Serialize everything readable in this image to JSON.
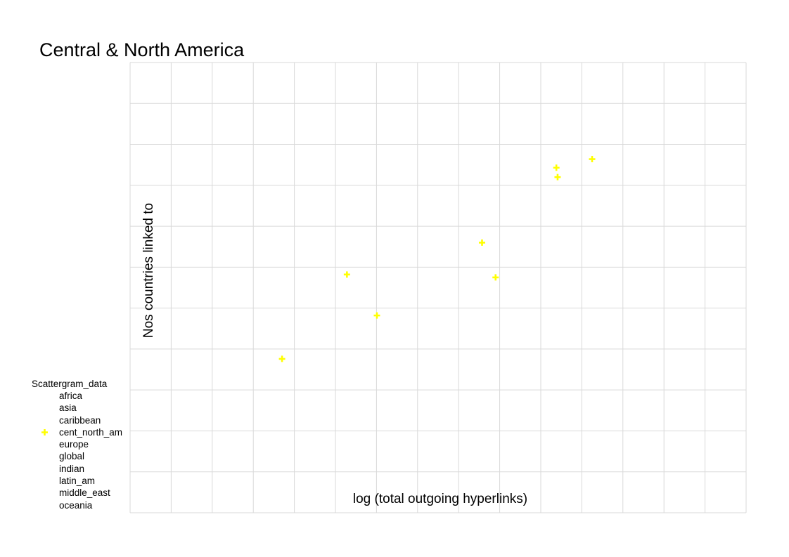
{
  "chart_data": {
    "type": "scatter",
    "title": "Central & North America",
    "xlabel": "log (total outgoing hyperlinks)",
    "ylabel": "Nos countries linked to",
    "grid": true,
    "x_divisions": 15,
    "y_divisions": 11,
    "marker": "plus",
    "legend": {
      "title": "Scattergram_data",
      "placement": "left",
      "entries": [
        {
          "label": "africa",
          "marker": false
        },
        {
          "label": "asia",
          "marker": false
        },
        {
          "label": "caribbean",
          "marker": false
        },
        {
          "label": "cent_north_am",
          "marker": true
        },
        {
          "label": "europe",
          "marker": false
        },
        {
          "label": "global",
          "marker": false
        },
        {
          "label": "indian",
          "marker": false
        },
        {
          "label": "latin_am",
          "marker": false
        },
        {
          "label": "middle_east",
          "marker": false
        },
        {
          "label": "oceania",
          "marker": false
        }
      ]
    },
    "series": [
      {
        "color": "#ffff00",
        "points": [
          {
            "x": 3.7,
            "y": 3.76
          },
          {
            "x": 5.28,
            "y": 5.82
          },
          {
            "x": 6.01,
            "y": 4.82
          },
          {
            "x": 8.57,
            "y": 6.6
          },
          {
            "x": 8.9,
            "y": 5.75
          },
          {
            "x": 10.38,
            "y": 8.43
          },
          {
            "x": 10.41,
            "y": 8.2
          },
          {
            "x": 11.25,
            "y": 8.64
          }
        ]
      }
    ]
  }
}
